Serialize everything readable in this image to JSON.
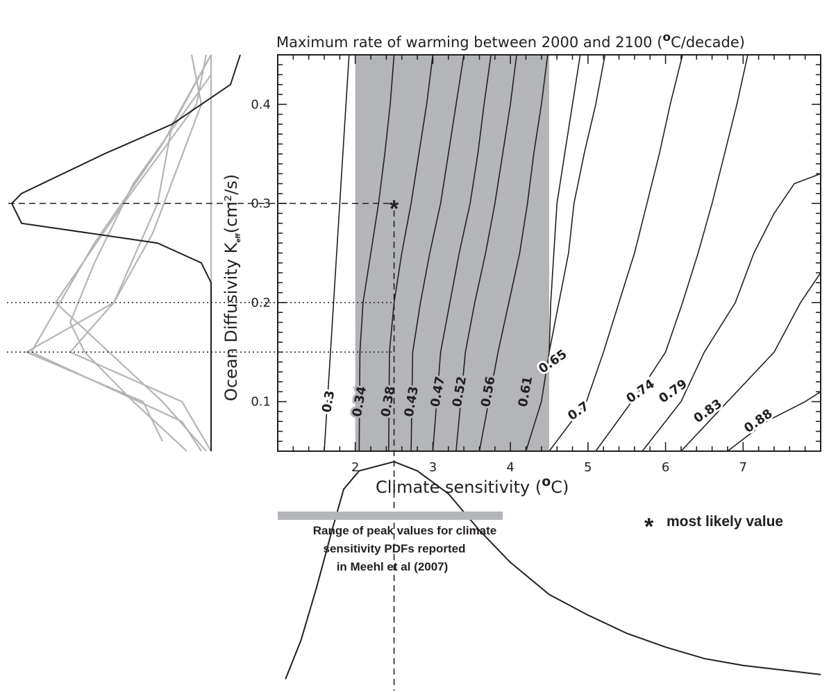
{
  "chart_data": {
    "type": "contour",
    "title_prefix": "Maximum rate of warming between 2000 and 2100 (",
    "title_degree": "o",
    "title_suffix": "C/decade)",
    "xlabel_prefix": "Climate sensitivity (",
    "xlabel_degree": "o",
    "xlabel_suffix": "C)",
    "ylabel": "Ocean Diffusivity K",
    "ylabel_subscript": "eff",
    "ylabel_unit": "(cm²/s)",
    "xlim": [
      1,
      8
    ],
    "ylim": [
      0.05,
      0.45
    ],
    "x_ticks": [
      "2",
      "3",
      "4",
      "5",
      "6",
      "7"
    ],
    "y_ticks": [
      "0.1",
      "0.2",
      "0.3",
      "0.4"
    ],
    "shaded_x_range": [
      2.0,
      4.5
    ],
    "shading_color": "#b4b5b8",
    "most_likely": {
      "x": 2.5,
      "y": 0.3
    },
    "reference_lines_y": [
      0.2,
      0.15
    ],
    "contours": [
      {
        "label": "0.3",
        "points": [
          [
            1.6,
            0.05
          ],
          [
            1.68,
            0.15
          ],
          [
            1.76,
            0.25
          ],
          [
            1.84,
            0.35
          ],
          [
            1.92,
            0.45
          ]
        ],
        "lpos": [
          1.66,
          0.1
        ]
      },
      {
        "label": "0.34",
        "points": [
          [
            2.05,
            0.05
          ],
          [
            2.06,
            0.15
          ],
          [
            2.1,
            0.2
          ],
          [
            2.2,
            0.25
          ],
          [
            2.3,
            0.3
          ],
          [
            2.38,
            0.35
          ],
          [
            2.45,
            0.4
          ],
          [
            2.5,
            0.45
          ]
        ],
        "lpos": [
          2.06,
          0.1
        ]
      },
      {
        "label": "0.38",
        "points": [
          [
            2.43,
            0.05
          ],
          [
            2.44,
            0.15
          ],
          [
            2.5,
            0.2
          ],
          [
            2.6,
            0.25
          ],
          [
            2.72,
            0.3
          ],
          [
            2.82,
            0.35
          ],
          [
            2.92,
            0.4
          ],
          [
            3.0,
            0.45
          ]
        ],
        "lpos": [
          2.43,
          0.1
        ]
      },
      {
        "label": "0.43",
        "points": [
          [
            2.72,
            0.05
          ],
          [
            2.74,
            0.15
          ],
          [
            2.84,
            0.2
          ],
          [
            2.96,
            0.25
          ],
          [
            3.1,
            0.3
          ],
          [
            3.2,
            0.35
          ],
          [
            3.3,
            0.4
          ],
          [
            3.4,
            0.45
          ]
        ],
        "lpos": [
          2.73,
          0.1
        ]
      },
      {
        "label": "0.47",
        "points": [
          [
            3.0,
            0.05
          ],
          [
            3.1,
            0.15
          ],
          [
            3.22,
            0.2
          ],
          [
            3.34,
            0.25
          ],
          [
            3.48,
            0.3
          ],
          [
            3.58,
            0.35
          ],
          [
            3.66,
            0.4
          ],
          [
            3.75,
            0.45
          ]
        ],
        "lpos": [
          3.07,
          0.11
        ]
      },
      {
        "label": "0.52",
        "points": [
          [
            3.3,
            0.05
          ],
          [
            3.42,
            0.15
          ],
          [
            3.54,
            0.2
          ],
          [
            3.68,
            0.25
          ],
          [
            3.8,
            0.3
          ],
          [
            3.9,
            0.35
          ],
          [
            4.0,
            0.4
          ],
          [
            4.08,
            0.45
          ]
        ],
        "lpos": [
          3.35,
          0.11
        ]
      },
      {
        "label": "0.56",
        "points": [
          [
            3.6,
            0.05
          ],
          [
            3.84,
            0.15
          ],
          [
            3.98,
            0.2
          ],
          [
            4.12,
            0.25
          ],
          [
            4.22,
            0.3
          ],
          [
            4.3,
            0.35
          ],
          [
            4.4,
            0.4
          ],
          [
            4.48,
            0.45
          ]
        ],
        "lpos": [
          3.72,
          0.11
        ]
      },
      {
        "label": "0.61",
        "points": [
          [
            4.2,
            0.05
          ],
          [
            4.4,
            0.1
          ],
          [
            4.5,
            0.15
          ],
          [
            4.52,
            0.2
          ],
          [
            4.6,
            0.3
          ],
          [
            4.7,
            0.35
          ],
          [
            4.8,
            0.4
          ],
          [
            4.9,
            0.45
          ]
        ],
        "lpos": [
          4.2,
          0.11
        ]
      },
      {
        "label": "0.65",
        "points": [
          [
            4.5,
            0.15
          ],
          [
            4.75,
            0.25
          ],
          [
            4.82,
            0.3
          ],
          [
            4.95,
            0.35
          ],
          [
            5.1,
            0.4
          ],
          [
            5.22,
            0.45
          ]
        ],
        "lpos": [
          4.55,
          0.14
        ]
      },
      {
        "label": "0.7",
        "points": [
          [
            4.5,
            0.05
          ],
          [
            4.98,
            0.1
          ],
          [
            5.2,
            0.15
          ],
          [
            5.4,
            0.2
          ],
          [
            5.6,
            0.25
          ],
          [
            5.76,
            0.3
          ],
          [
            5.92,
            0.35
          ],
          [
            6.06,
            0.4
          ],
          [
            6.22,
            0.45
          ]
        ],
        "lpos": [
          4.88,
          0.09
        ]
      },
      {
        "label": "0.74",
        "points": [
          [
            5.1,
            0.05
          ],
          [
            5.75,
            0.12
          ],
          [
            6.0,
            0.15
          ],
          [
            6.22,
            0.2
          ],
          [
            6.42,
            0.25
          ],
          [
            6.6,
            0.3
          ],
          [
            6.76,
            0.35
          ],
          [
            6.92,
            0.4
          ],
          [
            7.06,
            0.45
          ]
        ],
        "lpos": [
          5.68,
          0.11
        ]
      },
      {
        "label": "0.79",
        "points": [
          [
            5.7,
            0.05
          ],
          [
            6.2,
            0.1
          ],
          [
            6.5,
            0.15
          ],
          [
            6.9,
            0.2
          ],
          [
            7.14,
            0.25
          ],
          [
            7.4,
            0.29
          ],
          [
            7.66,
            0.32
          ],
          [
            8.0,
            0.33
          ]
        ],
        "lpos": [
          6.1,
          0.11
        ]
      },
      {
        "label": "0.83",
        "points": [
          [
            6.2,
            0.05
          ],
          [
            6.8,
            0.1
          ],
          [
            7.4,
            0.15
          ],
          [
            7.74,
            0.2
          ],
          [
            8.0,
            0.23
          ]
        ],
        "lpos": [
          6.55,
          0.09
        ]
      },
      {
        "label": "0.88",
        "points": [
          [
            6.8,
            0.05
          ],
          [
            7.3,
            0.08
          ],
          [
            7.8,
            0.1
          ],
          [
            8.0,
            0.11
          ]
        ],
        "lpos": [
          7.2,
          0.08
        ]
      }
    ],
    "left_panel_black_curve": [
      [
        0.3,
        0.45
      ],
      [
        0.2,
        0.42
      ],
      [
        -0.4,
        0.38
      ],
      [
        -1.1,
        0.35
      ],
      [
        -1.95,
        0.31
      ],
      [
        -2.05,
        0.3
      ],
      [
        -1.95,
        0.28
      ],
      [
        -0.55,
        0.26
      ],
      [
        -0.1,
        0.24
      ],
      [
        0.0,
        0.22
      ],
      [
        0.0,
        0.05
      ]
    ],
    "left_panel_grey_curves": [
      [
        [
          0.0,
          0.45
        ],
        [
          0.0,
          0.05
        ]
      ],
      [
        [
          0.0,
          0.45
        ],
        [
          -0.4,
          0.38
        ],
        [
          -0.55,
          0.3
        ],
        [
          -1.0,
          0.2
        ],
        [
          -1.45,
          0.15
        ],
        [
          -0.3,
          0.1
        ],
        [
          0.0,
          0.05
        ]
      ],
      [
        [
          0.0,
          0.45
        ],
        [
          -0.5,
          0.36
        ],
        [
          -1.2,
          0.26
        ],
        [
          -1.85,
          0.15
        ],
        [
          -0.3,
          0.08
        ],
        [
          -0.1,
          0.05
        ]
      ],
      [
        [
          -0.2,
          0.45
        ],
        [
          -0.1,
          0.4
        ],
        [
          -0.6,
          0.27
        ],
        [
          -1.0,
          0.2
        ],
        [
          -1.9,
          0.15
        ],
        [
          -0.7,
          0.1
        ],
        [
          -0.5,
          0.06
        ]
      ],
      [
        [
          0.0,
          0.43
        ],
        [
          -0.8,
          0.32
        ],
        [
          -1.2,
          0.24
        ],
        [
          -1.45,
          0.18
        ],
        [
          -1.3,
          0.15
        ],
        [
          -0.8,
          0.1
        ],
        [
          -0.25,
          0.05
        ]
      ],
      [
        [
          -0.05,
          0.45
        ],
        [
          -0.15,
          0.4
        ],
        [
          -0.9,
          0.3
        ],
        [
          -1.6,
          0.2
        ],
        [
          -1.05,
          0.15
        ],
        [
          -0.5,
          0.1
        ],
        [
          -0.05,
          0.05
        ]
      ]
    ],
    "bottom_pdf_curve": [
      [
        1.1,
        0.05
      ],
      [
        1.3,
        0.22
      ],
      [
        1.5,
        0.45
      ],
      [
        1.7,
        0.7
      ],
      [
        1.85,
        0.88
      ],
      [
        2.05,
        0.96
      ],
      [
        2.5,
        1.0
      ],
      [
        2.8,
        0.96
      ],
      [
        3.2,
        0.86
      ],
      [
        3.6,
        0.7
      ],
      [
        4.0,
        0.56
      ],
      [
        4.5,
        0.42
      ],
      [
        5.0,
        0.33
      ],
      [
        5.5,
        0.25
      ],
      [
        6.0,
        0.19
      ],
      [
        6.5,
        0.14
      ],
      [
        7.0,
        0.11
      ],
      [
        7.5,
        0.09
      ],
      [
        8.0,
        0.07
      ]
    ],
    "peak_range": [
      1.0,
      3.9
    ],
    "peak_range_color": "#b4b5b8",
    "annotation_lines": [
      "Range of peak values for climate",
      "sensitivity PDFs reported",
      "in Meehl et al (2007)"
    ],
    "legend_symbol": "*",
    "legend_text": "most likely value"
  }
}
